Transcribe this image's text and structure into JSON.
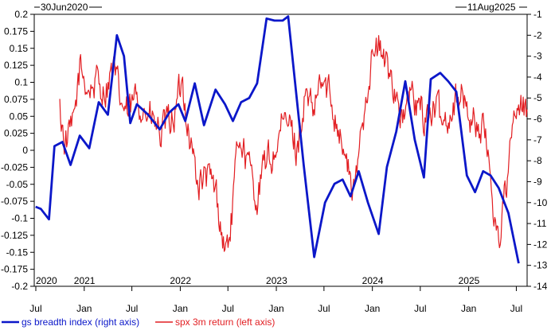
{
  "chart_data": {
    "type": "line",
    "start_date_label": "30Jun2020",
    "end_date_label": "11Aug2025",
    "x_month_ticks": [
      "Jul",
      "Jan",
      "Jul",
      "Jan",
      "Jul",
      "Jan",
      "Jul",
      "Jan",
      "Jul",
      "Jan",
      "Jul"
    ],
    "x_year_labels": [
      "2020",
      "2021",
      "2022",
      "2023",
      "2024",
      "2025"
    ],
    "left_axis": {
      "ylim": [
        -0.2,
        0.2
      ],
      "ticks": [
        "0.2",
        "0.175",
        "0.15",
        "0.125",
        "0.1",
        "0.075",
        "0.05",
        "0.025",
        "0",
        "-0.025",
        "-0.05",
        "-0.075",
        "-0.1",
        "-0.125",
        "-0.15",
        "-0.175",
        "-0.2"
      ]
    },
    "right_axis": {
      "ylim": [
        -14,
        -1
      ],
      "ticks": [
        "-1",
        "-2",
        "-3",
        "-4",
        "-5",
        "-6",
        "-7",
        "-8",
        "-9",
        "-10",
        "-11",
        "-12",
        "-13",
        "-14"
      ]
    },
    "grid": false,
    "legend_placement": "bottom",
    "series": [
      {
        "name": "gs breadth index (right axis)",
        "axis": "right",
        "color": "#0b17c9",
        "points": [
          [
            "2020-06-30",
            -10.2
          ],
          [
            "2020-07-20",
            -10.3
          ],
          [
            "2020-08-20",
            -10.8
          ],
          [
            "2020-09-10",
            -7.3
          ],
          [
            "2020-10-10",
            -7.1
          ],
          [
            "2020-11-10",
            -8.2
          ],
          [
            "2020-12-15",
            -6.8
          ],
          [
            "2021-01-20",
            -7.4
          ],
          [
            "2021-02-25",
            -5.2
          ],
          [
            "2021-04-01",
            -5.8
          ],
          [
            "2021-05-05",
            -2.0
          ],
          [
            "2021-06-01",
            -3.0
          ],
          [
            "2021-06-25",
            -6.2
          ],
          [
            "2021-07-20",
            -5.3
          ],
          [
            "2021-09-01",
            -5.8
          ],
          [
            "2021-10-15",
            -6.5
          ],
          [
            "2021-11-20",
            -5.7
          ],
          [
            "2021-12-25",
            -5.3
          ],
          [
            "2022-01-20",
            -6.1
          ],
          [
            "2022-02-25",
            -4.3
          ],
          [
            "2022-04-01",
            -6.3
          ],
          [
            "2022-05-15",
            -4.6
          ],
          [
            "2022-06-20",
            -5.3
          ],
          [
            "2022-07-20",
            -6.1
          ],
          [
            "2022-08-20",
            -5.2
          ],
          [
            "2022-09-20",
            -5.0
          ],
          [
            "2022-10-20",
            -4.3
          ],
          [
            "2022-11-25",
            -1.2
          ],
          [
            "2022-12-25",
            -1.3
          ],
          [
            "2023-01-25",
            -1.3
          ],
          [
            "2023-02-15",
            -1.1
          ],
          [
            "2023-04-15",
            -8.2
          ],
          [
            "2023-05-25",
            -12.6
          ],
          [
            "2023-07-05",
            -10.0
          ],
          [
            "2023-08-10",
            -9.1
          ],
          [
            "2023-09-10",
            -8.9
          ],
          [
            "2023-10-10",
            -9.7
          ],
          [
            "2023-11-10",
            -8.5
          ],
          [
            "2023-12-15",
            -10.0
          ],
          [
            "2024-01-25",
            -11.5
          ],
          [
            "2024-02-25",
            -8.3
          ],
          [
            "2024-04-01",
            -6.6
          ],
          [
            "2024-05-05",
            -4.2
          ],
          [
            "2024-06-10",
            -7.0
          ],
          [
            "2024-07-15",
            -8.8
          ],
          [
            "2024-08-10",
            -4.1
          ],
          [
            "2024-09-15",
            -3.8
          ],
          [
            "2024-10-15",
            -4.2
          ],
          [
            "2024-11-15",
            -4.7
          ],
          [
            "2024-12-25",
            -8.7
          ],
          [
            "2025-01-25",
            -9.5
          ],
          [
            "2025-02-25",
            -8.5
          ],
          [
            "2025-03-25",
            -8.7
          ],
          [
            "2025-04-25",
            -9.3
          ],
          [
            "2025-06-01",
            -10.5
          ],
          [
            "2025-07-10",
            -12.9
          ]
        ]
      },
      {
        "name": "spx 3m return (left axis)",
        "axis": "left",
        "color": "#e21e22",
        "points": [
          [
            "2020-09-30",
            0.06
          ],
          [
            "2020-10-20",
            0.01
          ],
          [
            "2020-11-20",
            0.03
          ],
          [
            "2020-12-15",
            0.12
          ],
          [
            "2021-01-20",
            0.09
          ],
          [
            "2021-02-20",
            0.1
          ],
          [
            "2021-03-20",
            0.09
          ],
          [
            "2021-04-20",
            0.12
          ],
          [
            "2021-05-20",
            0.07
          ],
          [
            "2021-06-20",
            0.05
          ],
          [
            "2021-07-20",
            0.08
          ],
          [
            "2021-08-20",
            0.06
          ],
          [
            "2021-09-20",
            0.04
          ],
          [
            "2021-10-20",
            0.02
          ],
          [
            "2021-11-20",
            0.04
          ],
          [
            "2021-12-15",
            0.06
          ],
          [
            "2022-01-10",
            0.1
          ],
          [
            "2022-02-05",
            0.02
          ],
          [
            "2022-03-10",
            -0.05
          ],
          [
            "2022-04-10",
            -0.04
          ],
          [
            "2022-05-15",
            -0.06
          ],
          [
            "2022-06-20",
            -0.15
          ],
          [
            "2022-07-10",
            -0.12
          ],
          [
            "2022-08-15",
            0.03
          ],
          [
            "2022-09-20",
            -0.03
          ],
          [
            "2022-10-20",
            -0.07
          ],
          [
            "2022-11-20",
            -0.02
          ],
          [
            "2022-12-20",
            -0.01
          ],
          [
            "2023-01-20",
            0.03
          ],
          [
            "2023-02-20",
            0.04
          ],
          [
            "2023-03-20",
            0.0
          ],
          [
            "2023-04-20",
            0.08
          ],
          [
            "2023-05-20",
            0.05
          ],
          [
            "2023-06-20",
            0.1
          ],
          [
            "2023-07-25",
            0.08
          ],
          [
            "2023-08-25",
            0.04
          ],
          [
            "2023-09-25",
            -0.02
          ],
          [
            "2023-10-25",
            -0.07
          ],
          [
            "2023-11-25",
            0.05
          ],
          [
            "2023-12-25",
            0.13
          ],
          [
            "2024-01-25",
            0.15
          ],
          [
            "2024-02-25",
            0.12
          ],
          [
            "2024-03-25",
            0.1
          ],
          [
            "2024-04-25",
            0.04
          ],
          [
            "2024-05-25",
            0.08
          ],
          [
            "2024-06-25",
            0.06
          ],
          [
            "2024-07-25",
            0.05
          ],
          [
            "2024-08-25",
            0.06
          ],
          [
            "2024-09-25",
            0.04
          ],
          [
            "2024-10-25",
            0.06
          ],
          [
            "2024-11-25",
            0.09
          ],
          [
            "2024-12-25",
            0.06
          ],
          [
            "2025-01-25",
            0.04
          ],
          [
            "2025-02-25",
            0.03
          ],
          [
            "2025-03-25",
            -0.03
          ],
          [
            "2025-04-10",
            -0.1
          ],
          [
            "2025-04-25",
            -0.13
          ],
          [
            "2025-05-25",
            -0.05
          ],
          [
            "2025-06-25",
            0.05
          ],
          [
            "2025-08-11",
            0.06
          ]
        ]
      }
    ]
  }
}
